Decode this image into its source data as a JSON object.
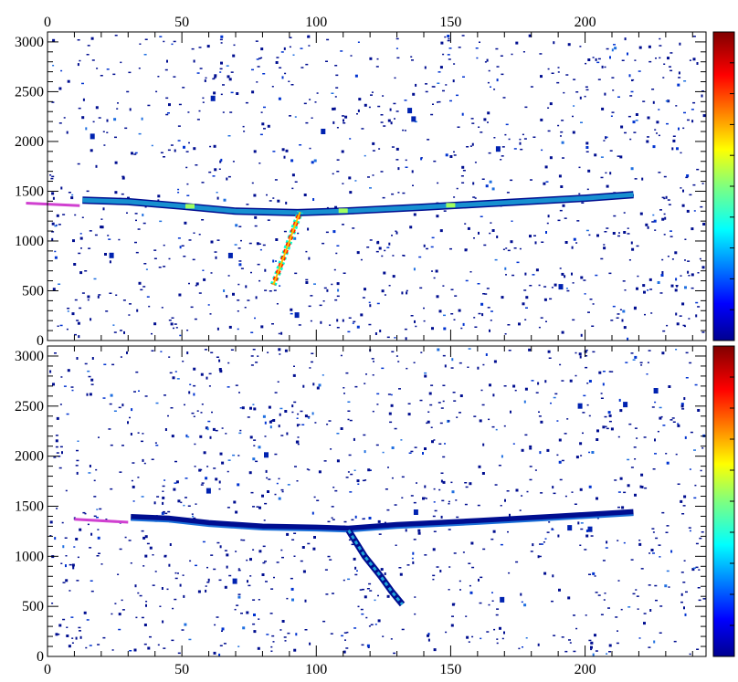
{
  "chart_data": [
    {
      "type": "heatmap",
      "panel": "top",
      "title": "",
      "xlabel": "",
      "ylabel": "",
      "xlim": [
        0,
        245
      ],
      "ylim": [
        0,
        3100
      ],
      "x_ticks": [
        0,
        50,
        100,
        150,
        200
      ],
      "y_ticks": [
        0,
        500,
        1000,
        1500,
        2000,
        2500,
        3000
      ],
      "x_axis_position": "top",
      "colorbar": "right",
      "colormap": "jet",
      "tracks": [
        {
          "points": [
            [
              13,
              1410
            ],
            [
              30,
              1395
            ],
            [
              50,
              1350
            ],
            [
              70,
              1300
            ],
            [
              93,
              1285
            ],
            [
              110,
              1300
            ],
            [
              140,
              1340
            ],
            [
              170,
              1385
            ],
            [
              200,
              1430
            ],
            [
              218,
              1465
            ]
          ],
          "color": "#1790d0",
          "weight": "thin",
          "highlights": [
            [
              53,
              1345
            ],
            [
              110,
              1300
            ],
            [
              150,
              1355
            ]
          ]
        },
        {
          "points": [
            [
              84,
              560
            ],
            [
              86,
              700
            ],
            [
              88,
              850
            ],
            [
              90,
              1000
            ],
            [
              92,
              1150
            ],
            [
              94,
              1290
            ]
          ],
          "color": "#ff6a00",
          "weight": "medium"
        },
        {
          "points": [
            [
              -8,
              1380
            ],
            [
              12,
              1355
            ]
          ],
          "color": "#d040d0",
          "weight": "thin"
        }
      ]
    },
    {
      "type": "heatmap",
      "panel": "bottom",
      "title": "",
      "xlabel": "",
      "ylabel": "",
      "xlim": [
        0,
        245
      ],
      "ylim": [
        0,
        3100
      ],
      "x_ticks": [
        0,
        50,
        100,
        150,
        200
      ],
      "y_ticks": [
        0,
        500,
        1000,
        1500,
        2000,
        2500,
        3000
      ],
      "x_axis_position": "bottom",
      "colorbar": "right",
      "colormap": "jet",
      "tracks": [
        {
          "points": [
            [
              31,
              1390
            ],
            [
              45,
              1375
            ],
            [
              60,
              1330
            ],
            [
              80,
              1295
            ],
            [
              100,
              1285
            ],
            [
              112,
              1275
            ],
            [
              130,
              1310
            ],
            [
              160,
              1350
            ],
            [
              190,
              1395
            ],
            [
              218,
              1440
            ]
          ],
          "color": "#000e90",
          "weight": "thick",
          "highlights": []
        },
        {
          "points": [
            [
              112,
              1260
            ],
            [
              118,
              1000
            ],
            [
              124,
              800
            ],
            [
              128,
              650
            ],
            [
              132,
              520
            ]
          ],
          "color": "#1fa6d8",
          "weight": "medium"
        },
        {
          "points": [
            [
              10,
              1370
            ],
            [
              30,
              1340
            ]
          ],
          "color": "#d040d0",
          "weight": "thin"
        }
      ]
    }
  ]
}
